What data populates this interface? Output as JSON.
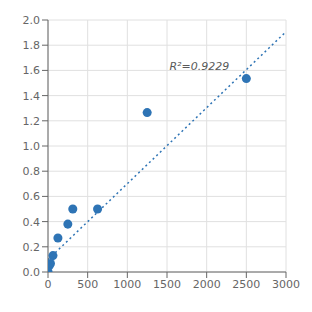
{
  "chart_data": {
    "type": "scatter",
    "series": [
      {
        "type": "scatter",
        "marker": "circle",
        "color": "#2e74b5",
        "x": [
          0,
          15,
          31.25,
          62.5,
          125,
          250,
          312.5,
          625,
          1250,
          2500
        ],
        "values": [
          0.003,
          0.05,
          0.067,
          0.13,
          0.27,
          0.38,
          0.5,
          0.5,
          1.265,
          1.535
        ]
      },
      {
        "type": "line",
        "line_style": "dotted",
        "color": "#2e74b5",
        "x": [
          0,
          3000
        ],
        "values": [
          0.098,
          1.907
        ]
      }
    ],
    "annotations": [
      {
        "text": "R²=0.9229",
        "x": 1530,
        "y": 1.67
      }
    ],
    "xlim": [
      0,
      3000
    ],
    "ylim": [
      0,
      2.0
    ],
    "xticks": [
      0,
      500,
      1000,
      1500,
      2000,
      2500,
      3000
    ],
    "yticks": [
      {
        "value": 0,
        "label": "0.0"
      },
      0.2,
      0.4,
      0.6,
      0.8,
      {
        "value": 1.0,
        "label": "1.0"
      },
      1.2,
      1.4,
      1.6,
      1.8,
      {
        "value": 2.0,
        "label": "2.0"
      }
    ],
    "grid": true
  }
}
